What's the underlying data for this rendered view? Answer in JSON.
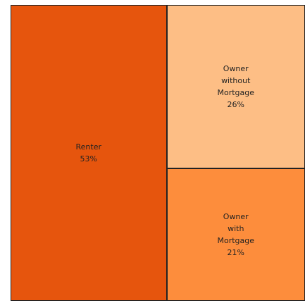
{
  "chart_data": {
    "type": "treemap",
    "categories": [
      "Renter",
      "Owner without Mortgage",
      "Owner with Mortgage"
    ],
    "values": [
      53,
      26,
      21
    ],
    "value_labels": [
      "53%",
      "26%",
      "21%"
    ],
    "colors": [
      "#e6550d",
      "#fdbe85",
      "#fd8d3c"
    ]
  }
}
